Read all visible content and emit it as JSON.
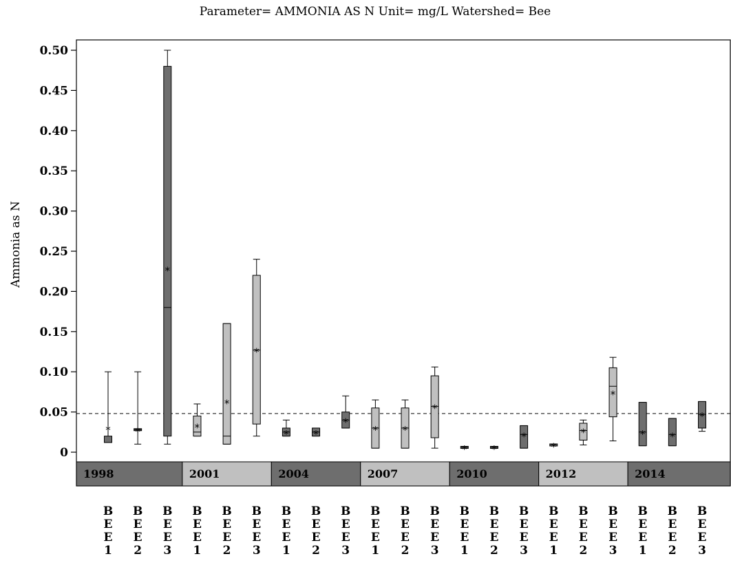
{
  "chart_data": {
    "type": "box",
    "title": "Parameter= AMMONIA AS N Unit= mg/L Watershed= Bee",
    "ylabel": "Ammonia as N",
    "ylim": [
      0,
      0.5
    ],
    "yticks": [
      "0",
      "0.05",
      "0.10",
      "0.15",
      "0.20",
      "0.25",
      "0.30",
      "0.35",
      "0.40",
      "0.45",
      "0.50"
    ],
    "reference_line": 0.048,
    "years": [
      {
        "label": "1998",
        "span": 3,
        "shade": "dark"
      },
      {
        "label": "2001",
        "span": 3,
        "shade": "light"
      },
      {
        "label": "2004",
        "span": 3,
        "shade": "dark"
      },
      {
        "label": "2007",
        "span": 3,
        "shade": "light"
      },
      {
        "label": "2010",
        "span": 3,
        "shade": "dark"
      },
      {
        "label": "2012",
        "span": 3,
        "shade": "light"
      },
      {
        "label": "2014",
        "span": 3,
        "shade": "dark"
      }
    ],
    "colors": {
      "dark": "#6e6e6e",
      "light": "#c0c0c0"
    },
    "boxes": [
      {
        "site": "BEE1",
        "year": "1998",
        "whisker_low": 0.012,
        "q1": 0.012,
        "median": 0.012,
        "q3": 0.02,
        "whisker_high": 0.1,
        "mean": 0.03
      },
      {
        "site": "BEE2",
        "year": "1998",
        "whisker_low": 0.01,
        "q1": 0.028,
        "median": 0.028,
        "q3": 0.028,
        "whisker_high": 0.1,
        "mean": 0.028
      },
      {
        "site": "BEE3",
        "year": "1998",
        "whisker_low": 0.01,
        "q1": 0.02,
        "median": 0.18,
        "q3": 0.48,
        "whisker_high": 0.5,
        "mean": 0.228
      },
      {
        "site": "BEE1",
        "year": "2001",
        "whisker_low": 0.02,
        "q1": 0.02,
        "median": 0.025,
        "q3": 0.045,
        "whisker_high": 0.06,
        "mean": 0.033
      },
      {
        "site": "BEE2",
        "year": "2001",
        "whisker_low": 0.01,
        "q1": 0.01,
        "median": 0.02,
        "q3": 0.16,
        "whisker_high": 0.16,
        "mean": 0.063
      },
      {
        "site": "BEE3",
        "year": "2001",
        "whisker_low": 0.02,
        "q1": 0.035,
        "median": 0.127,
        "q3": 0.22,
        "whisker_high": 0.24,
        "mean": 0.127
      },
      {
        "site": "BEE1",
        "year": "2004",
        "whisker_low": 0.02,
        "q1": 0.02,
        "median": 0.025,
        "q3": 0.03,
        "whisker_high": 0.04,
        "mean": 0.025
      },
      {
        "site": "BEE2",
        "year": "2004",
        "whisker_low": 0.02,
        "q1": 0.02,
        "median": 0.025,
        "q3": 0.03,
        "whisker_high": 0.03,
        "mean": 0.025
      },
      {
        "site": "BEE3",
        "year": "2004",
        "whisker_low": 0.03,
        "q1": 0.03,
        "median": 0.04,
        "q3": 0.05,
        "whisker_high": 0.07,
        "mean": 0.04
      },
      {
        "site": "BEE1",
        "year": "2007",
        "whisker_low": 0.005,
        "q1": 0.005,
        "median": 0.03,
        "q3": 0.055,
        "whisker_high": 0.065,
        "mean": 0.03
      },
      {
        "site": "BEE2",
        "year": "2007",
        "whisker_low": 0.005,
        "q1": 0.005,
        "median": 0.03,
        "q3": 0.055,
        "whisker_high": 0.065,
        "mean": 0.03
      },
      {
        "site": "BEE3",
        "year": "2007",
        "whisker_low": 0.005,
        "q1": 0.018,
        "median": 0.057,
        "q3": 0.095,
        "whisker_high": 0.106,
        "mean": 0.057
      },
      {
        "site": "BEE1",
        "year": "2010",
        "whisker_low": 0.006,
        "q1": 0.006,
        "median": 0.006,
        "q3": 0.006,
        "whisker_high": 0.006,
        "mean": 0.006
      },
      {
        "site": "BEE2",
        "year": "2010",
        "whisker_low": 0.006,
        "q1": 0.006,
        "median": 0.006,
        "q3": 0.006,
        "whisker_high": 0.006,
        "mean": 0.006
      },
      {
        "site": "BEE3",
        "year": "2010",
        "whisker_low": 0.005,
        "q1": 0.005,
        "median": 0.022,
        "q3": 0.033,
        "whisker_high": 0.033,
        "mean": 0.022
      },
      {
        "site": "BEE1",
        "year": "2012",
        "whisker_low": 0.009,
        "q1": 0.009,
        "median": 0.009,
        "q3": 0.009,
        "whisker_high": 0.009,
        "mean": 0.009
      },
      {
        "site": "BEE2",
        "year": "2012",
        "whisker_low": 0.009,
        "q1": 0.015,
        "median": 0.027,
        "q3": 0.036,
        "whisker_high": 0.04,
        "mean": 0.027
      },
      {
        "site": "BEE3",
        "year": "2012",
        "whisker_low": 0.014,
        "q1": 0.044,
        "median": 0.082,
        "q3": 0.105,
        "whisker_high": 0.118,
        "mean": 0.074
      },
      {
        "site": "BEE1",
        "year": "2014",
        "whisker_low": 0.008,
        "q1": 0.008,
        "median": 0.025,
        "q3": 0.062,
        "whisker_high": 0.062,
        "mean": 0.025
      },
      {
        "site": "BEE2",
        "year": "2014",
        "whisker_low": 0.008,
        "q1": 0.008,
        "median": 0.022,
        "q3": 0.042,
        "whisker_high": 0.042,
        "mean": 0.022
      },
      {
        "site": "BEE3",
        "year": "2014",
        "whisker_low": 0.026,
        "q1": 0.03,
        "median": 0.047,
        "q3": 0.063,
        "whisker_high": 0.063,
        "mean": 0.047
      }
    ]
  }
}
